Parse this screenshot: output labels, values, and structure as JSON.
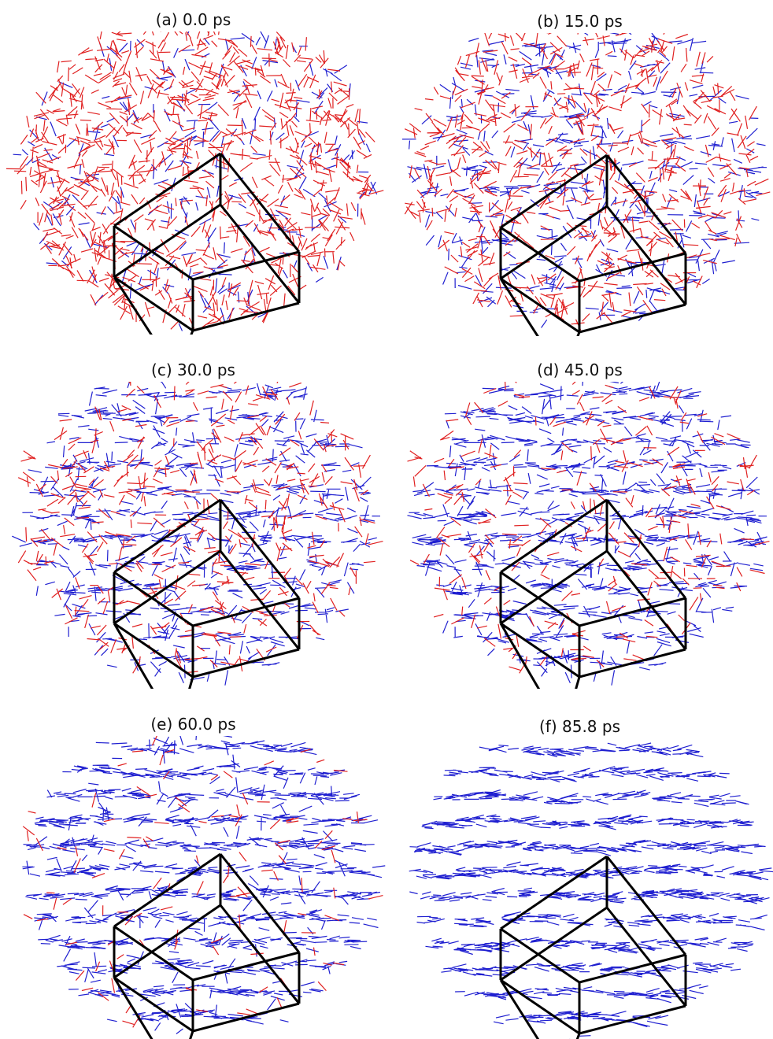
{
  "panels": [
    {
      "title": "(a) 0.0 ps"
    },
    {
      "title": "(b) 15.0 ps"
    },
    {
      "title": "(c) 30.0 ps"
    },
    {
      "title": "(d) 45.0 ps"
    },
    {
      "title": "(e) 60.0 ps"
    },
    {
      "title": "(f) 85.8 ps"
    }
  ]
}
